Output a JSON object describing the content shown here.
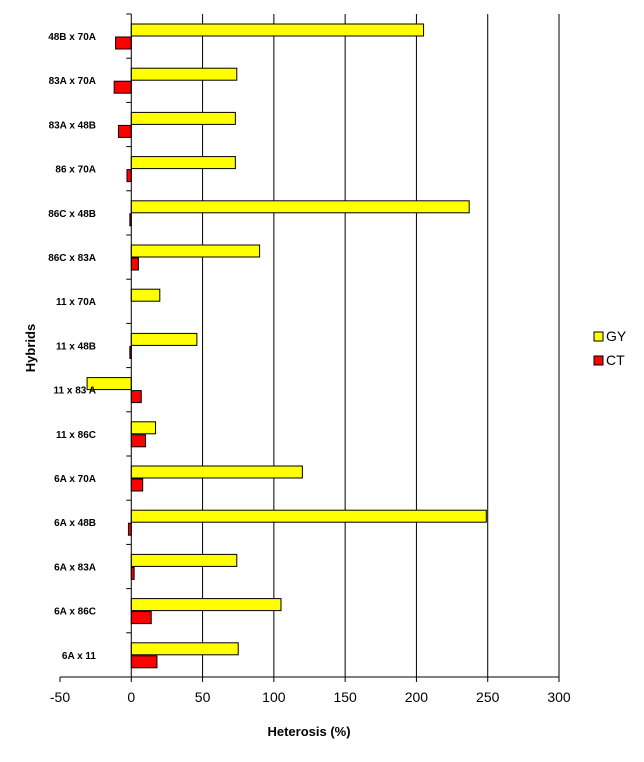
{
  "chart_data": {
    "type": "bar",
    "orientation": "horizontal",
    "title": "",
    "xlabel": "Heterosis (%)",
    "ylabel": "Hybrids",
    "xlim": [
      -50,
      300
    ],
    "xticks": [
      -50,
      0,
      50,
      100,
      150,
      200,
      250,
      300
    ],
    "grid": "vertical",
    "legend_position": "right",
    "categories": [
      "48B x 70A",
      "83A x 70A",
      "83A x 48B",
      "86 x 70A",
      "86C x 48B",
      "86C x 83A",
      "11 x 70A",
      "11 x 48B",
      "11 x 83 A",
      "11 x 86C",
      "6A x 70A",
      "6A x 48B",
      "6A x 83A",
      "6A x 86C",
      "6A x 11"
    ],
    "series": [
      {
        "name": "GY",
        "color": "#ffff00",
        "values": [
          205,
          74,
          73,
          73,
          237,
          90,
          20,
          46,
          -31,
          17,
          120,
          249,
          74,
          105,
          75
        ]
      },
      {
        "name": "CT",
        "color": "#ff0000",
        "values": [
          -11,
          -12,
          -9,
          -3,
          -1,
          5,
          0,
          -1,
          7,
          10,
          8,
          -2,
          2,
          14,
          18
        ]
      }
    ]
  }
}
